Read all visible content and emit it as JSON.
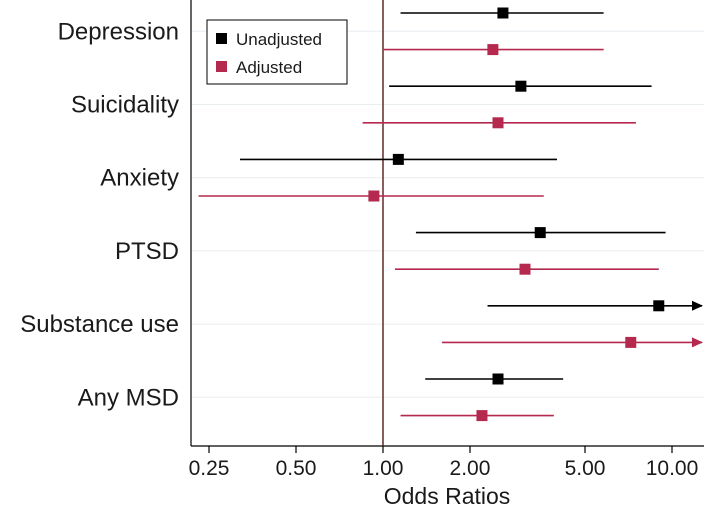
{
  "chart_data": {
    "type": "forest",
    "xlabel": "Odds Ratios",
    "x_scale": "log",
    "xlim": [
      0.22,
      13.0
    ],
    "x_ticks": [
      {
        "value": 0.25,
        "label": "0.25"
      },
      {
        "value": 0.5,
        "label": "0.50"
      },
      {
        "value": 1.0,
        "label": "1.00"
      },
      {
        "value": 2.0,
        "label": "2.00"
      },
      {
        "value": 5.0,
        "label": "5.00"
      },
      {
        "value": 10.0,
        "label": "10.00"
      }
    ],
    "reference_line": 1.0,
    "categories": [
      "Depression",
      "Suicidality",
      "Anxiety",
      "PTSD",
      "Substance use",
      "Any MSD"
    ],
    "series": [
      {
        "name": "Unadjusted",
        "color": "#000000",
        "points": [
          {
            "category": "Depression",
            "or": 2.6,
            "lower": 1.15,
            "upper": 5.8,
            "upper_arrow": false
          },
          {
            "category": "Suicidality",
            "or": 3.0,
            "lower": 1.05,
            "upper": 8.5,
            "upper_arrow": false
          },
          {
            "category": "Anxiety",
            "or": 1.13,
            "lower": 0.32,
            "upper": 4.0,
            "upper_arrow": false
          },
          {
            "category": "PTSD",
            "or": 3.5,
            "lower": 1.3,
            "upper": 9.5,
            "upper_arrow": false
          },
          {
            "category": "Substance use",
            "or": 9.0,
            "lower": 2.3,
            "upper": 13.0,
            "upper_arrow": true
          },
          {
            "category": "Any MSD",
            "or": 2.5,
            "lower": 1.4,
            "upper": 4.2,
            "upper_arrow": false
          }
        ]
      },
      {
        "name": "Adjusted",
        "color": "#b5294e",
        "points": [
          {
            "category": "Depression",
            "or": 2.4,
            "lower": 1.0,
            "upper": 5.8,
            "upper_arrow": false
          },
          {
            "category": "Suicidality",
            "or": 2.5,
            "lower": 0.85,
            "upper": 7.5,
            "upper_arrow": false
          },
          {
            "category": "Anxiety",
            "or": 0.93,
            "lower": 0.23,
            "upper": 3.6,
            "upper_arrow": false
          },
          {
            "category": "PTSD",
            "or": 3.1,
            "lower": 1.1,
            "upper": 9.0,
            "upper_arrow": false
          },
          {
            "category": "Substance use",
            "or": 7.2,
            "lower": 1.6,
            "upper": 13.0,
            "upper_arrow": true
          },
          {
            "category": "Any MSD",
            "or": 2.2,
            "lower": 1.15,
            "upper": 3.9,
            "upper_arrow": false
          }
        ]
      }
    ],
    "legend": {
      "position": "top-left",
      "entries": [
        "Unadjusted",
        "Adjusted"
      ]
    },
    "grid": true
  }
}
